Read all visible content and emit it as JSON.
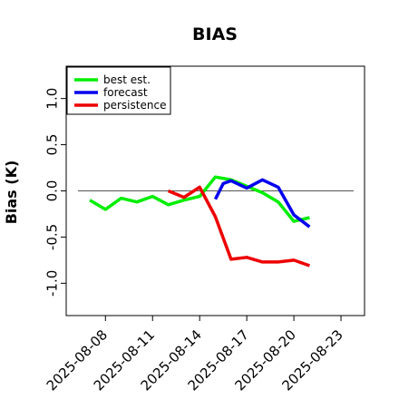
{
  "chart_data": {
    "type": "line",
    "title": "BIAS",
    "xlabel": "",
    "ylabel": "Bias (K)",
    "xlim": [
      "2025-08-05T12:00",
      "2025-08-24T12:00"
    ],
    "ylim": [
      -1.35,
      1.35
    ],
    "y_ticks": [
      "-1.0",
      "-0.5",
      "0.0",
      "0.5",
      "1.0"
    ],
    "x_ticks": [
      {
        "label": "2025-08-08",
        "date": "2025-08-08",
        "color": "#000000"
      },
      {
        "label": "2025-08-11",
        "date": "2025-08-11",
        "color": "#000000"
      },
      {
        "label": "2025-08-14",
        "date": "2025-08-14",
        "color": "#228B22"
      },
      {
        "label": "2025-08-17",
        "date": "2025-08-17",
        "color": "#000000"
      },
      {
        "label": "2025-08-20",
        "date": "2025-08-20",
        "color": "#000000"
      },
      {
        "label": "2025-08-23",
        "date": "2025-08-23",
        "color": "#000000"
      }
    ],
    "reference_line": 0.0,
    "legend_position": "top-left",
    "series": [
      {
        "name": "best est.",
        "color": "#00ee00",
        "x": [
          "2025-08-07",
          "2025-08-08",
          "2025-08-09",
          "2025-08-10",
          "2025-08-11",
          "2025-08-12",
          "2025-08-13",
          "2025-08-14",
          "2025-08-15",
          "2025-08-16",
          "2025-08-17",
          "2025-08-18",
          "2025-08-19",
          "2025-08-20",
          "2025-08-21"
        ],
        "values": [
          -0.1,
          -0.2,
          -0.08,
          -0.12,
          -0.06,
          -0.15,
          -0.1,
          -0.06,
          0.15,
          0.12,
          0.05,
          -0.02,
          -0.12,
          -0.33,
          -0.29
        ]
      },
      {
        "name": "forecast",
        "color": "#0000ee",
        "x": [
          "2025-08-15",
          "2025-08-15T12:00",
          "2025-08-16",
          "2025-08-17",
          "2025-08-18",
          "2025-08-19",
          "2025-08-20",
          "2025-08-21"
        ],
        "values": [
          -0.09,
          0.08,
          0.11,
          0.03,
          0.12,
          0.04,
          -0.26,
          -0.39
        ]
      },
      {
        "name": "persistence",
        "color": "#ee0000",
        "x": [
          "2025-08-12",
          "2025-08-13",
          "2025-08-14",
          "2025-08-15",
          "2025-08-16",
          "2025-08-17",
          "2025-08-18",
          "2025-08-19",
          "2025-08-20",
          "2025-08-21"
        ],
        "values": [
          0.0,
          -0.07,
          0.04,
          -0.28,
          -0.74,
          -0.72,
          -0.77,
          -0.77,
          -0.75,
          -0.81
        ]
      }
    ]
  }
}
